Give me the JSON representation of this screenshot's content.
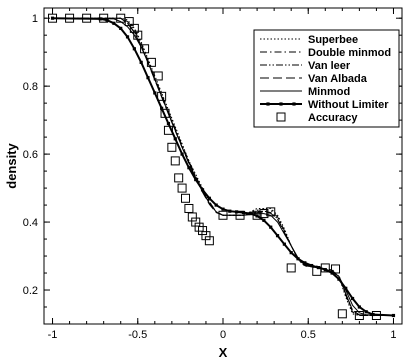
{
  "chart_data": {
    "type": "line",
    "xlabel": "X",
    "ylabel": "density",
    "xlim": [
      -1.05,
      1.05
    ],
    "ylim": [
      0.1,
      1.03
    ],
    "x_ticks": [
      -1,
      -0.5,
      0,
      0.5,
      1
    ],
    "x_tick_labels": [
      "-1",
      "-0.5",
      "0",
      "0.5",
      "1"
    ],
    "y_ticks": [
      0.2,
      0.4,
      0.6,
      0.8,
      1.0
    ],
    "y_tick_labels": [
      "0.2",
      "0.4",
      "0.6",
      "0.8",
      "1"
    ],
    "grid": false,
    "legend_position": "top-right",
    "series": [
      {
        "name": "Superbee",
        "style": "dotted",
        "color": "#000000",
        "x": [
          -1.0,
          -0.6,
          -0.56,
          -0.52,
          -0.48,
          -0.44,
          -0.4,
          -0.36,
          -0.32,
          -0.28,
          -0.24,
          -0.2,
          -0.16,
          -0.12,
          -0.08,
          -0.04,
          0.0,
          0.04,
          0.08,
          0.12,
          0.16,
          0.2,
          0.24,
          0.28,
          0.32,
          0.36,
          0.4,
          0.44,
          0.48,
          0.52,
          0.56,
          0.6,
          0.64,
          0.68,
          0.72,
          0.76,
          0.8,
          1.0
        ],
        "y": [
          1.0,
          1.0,
          0.995,
          0.97,
          0.93,
          0.88,
          0.83,
          0.78,
          0.73,
          0.68,
          0.63,
          0.58,
          0.54,
          0.5,
          0.46,
          0.43,
          0.42,
          0.42,
          0.42,
          0.42,
          0.43,
          0.44,
          0.44,
          0.44,
          0.42,
          0.38,
          0.33,
          0.29,
          0.27,
          0.27,
          0.27,
          0.26,
          0.26,
          0.24,
          0.18,
          0.13,
          0.125,
          0.125
        ]
      },
      {
        "name": "Double minmod",
        "style": "dashdot",
        "color": "#000000",
        "x": [
          -1.0,
          -0.6,
          -0.56,
          -0.52,
          -0.48,
          -0.44,
          -0.4,
          -0.36,
          -0.32,
          -0.28,
          -0.24,
          -0.2,
          -0.16,
          -0.12,
          -0.08,
          -0.04,
          0.0,
          0.04,
          0.08,
          0.12,
          0.16,
          0.2,
          0.24,
          0.28,
          0.32,
          0.36,
          0.4,
          0.44,
          0.48,
          0.52,
          0.56,
          0.6,
          0.64,
          0.68,
          0.72,
          0.76,
          0.8,
          1.0
        ],
        "y": [
          1.0,
          1.0,
          0.99,
          0.965,
          0.925,
          0.875,
          0.825,
          0.775,
          0.725,
          0.675,
          0.625,
          0.58,
          0.535,
          0.495,
          0.46,
          0.43,
          0.42,
          0.42,
          0.42,
          0.42,
          0.428,
          0.435,
          0.438,
          0.435,
          0.415,
          0.375,
          0.33,
          0.29,
          0.272,
          0.268,
          0.265,
          0.26,
          0.258,
          0.24,
          0.185,
          0.135,
          0.125,
          0.125
        ]
      },
      {
        "name": "Van leer",
        "style": "dashdotdot",
        "color": "#000000",
        "x": [
          -1.0,
          -0.6,
          -0.56,
          -0.52,
          -0.48,
          -0.44,
          -0.4,
          -0.36,
          -0.32,
          -0.28,
          -0.24,
          -0.2,
          -0.16,
          -0.12,
          -0.08,
          -0.04,
          0.0,
          0.04,
          0.08,
          0.12,
          0.16,
          0.2,
          0.24,
          0.28,
          0.32,
          0.36,
          0.4,
          0.44,
          0.48,
          0.52,
          0.56,
          0.6,
          0.64,
          0.68,
          0.72,
          0.76,
          0.8,
          1.0
        ],
        "y": [
          1.0,
          1.0,
          0.985,
          0.96,
          0.92,
          0.87,
          0.82,
          0.77,
          0.72,
          0.67,
          0.62,
          0.575,
          0.53,
          0.49,
          0.455,
          0.43,
          0.42,
          0.42,
          0.42,
          0.42,
          0.425,
          0.43,
          0.432,
          0.428,
          0.41,
          0.37,
          0.33,
          0.292,
          0.274,
          0.268,
          0.265,
          0.26,
          0.256,
          0.24,
          0.19,
          0.14,
          0.126,
          0.125
        ]
      },
      {
        "name": "Van Albada",
        "style": "longdash",
        "color": "#000000",
        "x": [
          -1.0,
          -0.6,
          -0.56,
          -0.52,
          -0.48,
          -0.44,
          -0.4,
          -0.36,
          -0.32,
          -0.28,
          -0.24,
          -0.2,
          -0.16,
          -0.12,
          -0.08,
          -0.04,
          0.0,
          0.04,
          0.08,
          0.12,
          0.16,
          0.2,
          0.24,
          0.28,
          0.32,
          0.36,
          0.4,
          0.44,
          0.48,
          0.52,
          0.56,
          0.6,
          0.64,
          0.68,
          0.72,
          0.76,
          0.8,
          1.0
        ],
        "y": [
          1.0,
          1.0,
          0.985,
          0.958,
          0.918,
          0.868,
          0.818,
          0.768,
          0.718,
          0.668,
          0.62,
          0.572,
          0.528,
          0.488,
          0.452,
          0.428,
          0.42,
          0.42,
          0.42,
          0.42,
          0.424,
          0.428,
          0.43,
          0.426,
          0.408,
          0.37,
          0.33,
          0.292,
          0.275,
          0.268,
          0.265,
          0.26,
          0.255,
          0.24,
          0.19,
          0.14,
          0.127,
          0.125
        ]
      },
      {
        "name": "Minmod",
        "style": "solid-thin",
        "color": "#000000",
        "x": [
          -1.0,
          -0.64,
          -0.6,
          -0.56,
          -0.52,
          -0.48,
          -0.44,
          -0.4,
          -0.36,
          -0.32,
          -0.28,
          -0.24,
          -0.2,
          -0.16,
          -0.12,
          -0.08,
          -0.04,
          0.0,
          0.04,
          0.08,
          0.12,
          0.16,
          0.2,
          0.24,
          0.28,
          0.32,
          0.36,
          0.4,
          0.44,
          0.48,
          0.52,
          0.56,
          0.6,
          0.64,
          0.68,
          0.72,
          0.76,
          0.8,
          0.84,
          1.0
        ],
        "y": [
          1.0,
          0.998,
          0.99,
          0.975,
          0.95,
          0.915,
          0.87,
          0.82,
          0.77,
          0.72,
          0.67,
          0.62,
          0.575,
          0.53,
          0.49,
          0.455,
          0.43,
          0.42,
          0.42,
          0.42,
          0.42,
          0.422,
          0.425,
          0.425,
          0.42,
          0.4,
          0.365,
          0.33,
          0.295,
          0.278,
          0.27,
          0.265,
          0.26,
          0.254,
          0.24,
          0.2,
          0.155,
          0.133,
          0.127,
          0.125
        ]
      },
      {
        "name": "Without Limiter",
        "style": "solid-thick-marked",
        "color": "#000000",
        "x": [
          -1.0,
          -0.72,
          -0.68,
          -0.64,
          -0.6,
          -0.56,
          -0.52,
          -0.48,
          -0.44,
          -0.4,
          -0.36,
          -0.32,
          -0.28,
          -0.24,
          -0.2,
          -0.16,
          -0.12,
          -0.08,
          -0.04,
          0.0,
          0.04,
          0.08,
          0.12,
          0.16,
          0.2,
          0.24,
          0.28,
          0.32,
          0.36,
          0.4,
          0.44,
          0.48,
          0.52,
          0.56,
          0.6,
          0.64,
          0.68,
          0.72,
          0.76,
          0.8,
          0.84,
          0.88,
          1.0
        ],
        "y": [
          1.0,
          0.998,
          0.994,
          0.985,
          0.97,
          0.945,
          0.91,
          0.87,
          0.825,
          0.78,
          0.735,
          0.69,
          0.645,
          0.6,
          0.56,
          0.525,
          0.495,
          0.47,
          0.45,
          0.438,
          0.432,
          0.43,
          0.428,
          0.425,
          0.418,
          0.405,
          0.385,
          0.36,
          0.335,
          0.31,
          0.292,
          0.28,
          0.272,
          0.266,
          0.26,
          0.25,
          0.232,
          0.205,
          0.175,
          0.15,
          0.136,
          0.128,
          0.125
        ]
      }
    ],
    "scatter": {
      "name": "Accuracy",
      "marker": "open-square",
      "x": [
        -1.0,
        -0.9,
        -0.8,
        -0.7,
        -0.6,
        -0.55,
        -0.52,
        -0.5,
        -0.46,
        -0.42,
        -0.38,
        -0.36,
        -0.34,
        -0.32,
        -0.3,
        -0.28,
        -0.26,
        -0.24,
        -0.22,
        -0.2,
        -0.18,
        -0.16,
        -0.14,
        -0.12,
        -0.1,
        -0.08,
        0.0,
        0.1,
        0.2,
        0.24,
        0.28,
        0.4,
        0.55,
        0.6,
        0.66,
        0.7,
        0.8,
        0.9
      ],
      "y": [
        1.0,
        1.0,
        1.0,
        1.0,
        1.0,
        0.99,
        0.97,
        0.95,
        0.91,
        0.87,
        0.83,
        0.77,
        0.72,
        0.67,
        0.62,
        0.58,
        0.53,
        0.5,
        0.47,
        0.44,
        0.415,
        0.4,
        0.385,
        0.375,
        0.36,
        0.345,
        0.42,
        0.42,
        0.42,
        0.425,
        0.43,
        0.265,
        0.255,
        0.265,
        0.262,
        0.13,
        0.125,
        0.125
      ]
    }
  }
}
